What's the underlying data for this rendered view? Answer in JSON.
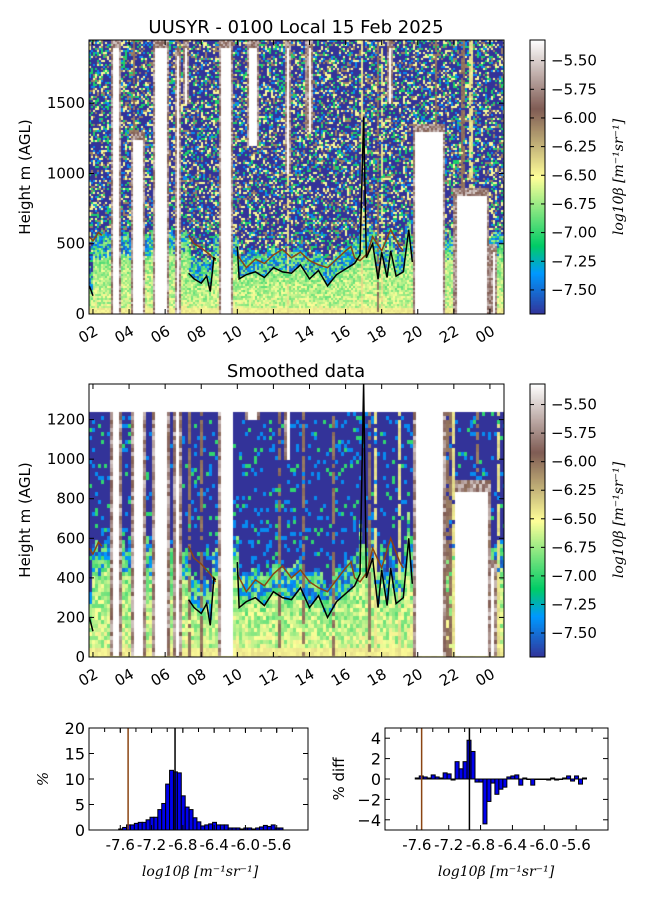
{
  "chart_data": [
    {
      "type": "heatmap",
      "title": "UUSYR - 0100 Local 15 Feb 2025",
      "ylabel": "Height m (AGL)",
      "xticklabels": [
        "02",
        "04",
        "06",
        "08",
        "10",
        "12",
        "14",
        "16",
        "18",
        "20",
        "22",
        "00"
      ],
      "xtick_hours": [
        2,
        4,
        6,
        8,
        10,
        12,
        14,
        16,
        18,
        20,
        22,
        24
      ],
      "xlim_hours": [
        1.78,
        24.78
      ],
      "yticks": [
        0,
        500,
        1000,
        1500
      ],
      "ylim": [
        0,
        1950
      ],
      "colorbar": {
        "label": "log10β [m⁻¹sr⁻¹]",
        "ticks": [
          "-5.50",
          "-5.75",
          "-6.00",
          "-6.25",
          "-6.50",
          "-6.75",
          "-7.00",
          "-7.25",
          "-7.50"
        ],
        "range": [
          -7.71,
          -5.32
        ],
        "colormap": "terrain"
      },
      "max_height_m": 1950
    },
    {
      "type": "heatmap",
      "title": "Smoothed data",
      "ylabel": "Height m (AGL)",
      "xticklabels": [
        "02",
        "04",
        "06",
        "08",
        "10",
        "12",
        "14",
        "16",
        "18",
        "20",
        "22",
        "00"
      ],
      "xtick_hours": [
        2,
        4,
        6,
        8,
        10,
        12,
        14,
        16,
        18,
        20,
        22,
        24
      ],
      "xlim_hours": [
        1.78,
        24.78
      ],
      "yticks": [
        0,
        200,
        400,
        600,
        800,
        1000,
        1200
      ],
      "ylim": [
        0,
        1380
      ],
      "colorbar": {
        "label": "log10β [m⁻¹sr⁻¹]",
        "ticks": [
          "-5.50",
          "-5.75",
          "-6.00",
          "-6.25",
          "-6.50",
          "-6.75",
          "-7.00",
          "-7.25",
          "-7.50"
        ],
        "range": [
          -7.71,
          -5.32
        ],
        "colormap": "terrain"
      },
      "max_height_m": 1240
    },
    {
      "type": "bar",
      "ylabel": "%",
      "xlabel": "log10β [m⁻¹sr⁻¹]",
      "xticks": [
        "-7.6",
        "-7.2",
        "-6.8",
        "-6.4",
        "-6.0",
        "-5.6"
      ],
      "xlim": [
        -8.0,
        -5.2
      ],
      "ylim": [
        0,
        20
      ],
      "yticks": [
        "0",
        "5",
        "10",
        "15",
        "20"
      ],
      "bin_start": -7.62,
      "bin_width": 0.05,
      "values": [
        0.2,
        0.5,
        1.0,
        1.0,
        1.3,
        1.5,
        1.5,
        2.0,
        2.5,
        2.5,
        4.0,
        5.2,
        9.0,
        11.7,
        11.4,
        11.2,
        6.7,
        4.5,
        4.0,
        2.4,
        1.6,
        0.8,
        1.0,
        1.2,
        1.5,
        1.0,
        1.0,
        1.0,
        0.4,
        0.4,
        0.4,
        0.2,
        0.4,
        0.4,
        0.2,
        0.4,
        0.6,
        0.9,
        0.7,
        1.0,
        0.4,
        0.4
      ],
      "vlines": [
        {
          "x": -7.5,
          "color": "#8b4513"
        },
        {
          "x": -6.9,
          "color": "#000000"
        }
      ]
    },
    {
      "type": "bar",
      "ylabel": "% diff",
      "xlabel": "log10β [m⁻¹sr⁻¹]",
      "xticks": [
        "-7.6",
        "-7.2",
        "-6.8",
        "-6.4",
        "-6.0",
        "-5.6"
      ],
      "xlim": [
        -8.0,
        -5.2
      ],
      "ylim": [
        -5,
        5
      ],
      "yticks": [
        "4",
        "2",
        "0",
        "-2",
        "-4"
      ],
      "bin_start": -7.62,
      "bin_width": 0.05,
      "values": [
        0.1,
        0.3,
        0.2,
        0.1,
        0.4,
        0.2,
        0.1,
        0.6,
        0.5,
        -0.1,
        1.7,
        1.0,
        1.7,
        3.8,
        2.7,
        -0.3,
        -0.3,
        -4.4,
        -2.2,
        -0.4,
        -1.5,
        -1.0,
        -0.8,
        0.2,
        0.3,
        0.4,
        -0.6,
        0.1,
        0.0,
        -0.6,
        0.0,
        0.0,
        0.0,
        -0.1,
        0.1,
        -0.1,
        0.0,
        0.1,
        0.3,
        -0.2,
        0.3,
        -0.5,
        0.1
      ],
      "vlines": [
        {
          "x": -7.54,
          "color": "#8b4513"
        },
        {
          "x": -6.94,
          "color": "#000000"
        }
      ]
    }
  ],
  "boundary_layer": {
    "black_line": [
      [
        [
          1.8,
          200
        ],
        [
          2.0,
          130
        ]
      ],
      [
        [
          7.3,
          290
        ],
        [
          7.6,
          250
        ],
        [
          8.0,
          220
        ],
        [
          8.3,
          270
        ],
        [
          8.5,
          160
        ],
        [
          8.7,
          400
        ],
        [
          8.8,
          390
        ]
      ],
      [
        [
          10.0,
          480
        ],
        [
          10.1,
          250
        ],
        [
          10.5,
          280
        ],
        [
          11.0,
          300
        ],
        [
          11.5,
          260
        ],
        [
          12.0,
          330
        ],
        [
          12.5,
          300
        ],
        [
          13.0,
          290
        ],
        [
          13.5,
          350
        ],
        [
          14.0,
          250
        ],
        [
          14.5,
          310
        ],
        [
          15.0,
          200
        ],
        [
          15.5,
          280
        ],
        [
          16.0,
          320
        ],
        [
          16.5,
          360
        ],
        [
          16.8,
          420
        ],
        [
          17.0,
          1400
        ],
        [
          17.15,
          400
        ],
        [
          17.5,
          500
        ],
        [
          17.8,
          250
        ],
        [
          18.0,
          440
        ],
        [
          18.3,
          260
        ],
        [
          18.5,
          450
        ],
        [
          18.8,
          270
        ],
        [
          19.2,
          300
        ],
        [
          19.5,
          600
        ],
        [
          19.7,
          370
        ]
      ]
    ],
    "brown_line": [
      [
        [
          1.8,
          550
        ],
        [
          2.0,
          520
        ],
        [
          2.3,
          580
        ],
        [
          2.5,
          560
        ]
      ],
      [
        [
          7.3,
          560
        ],
        [
          7.6,
          500
        ],
        [
          8.0,
          470
        ],
        [
          8.5,
          420
        ],
        [
          8.8,
          380
        ]
      ],
      [
        [
          10.0,
          420
        ],
        [
          10.5,
          330
        ],
        [
          11.0,
          390
        ],
        [
          11.5,
          360
        ],
        [
          12.0,
          420
        ],
        [
          12.5,
          460
        ],
        [
          13.0,
          400
        ],
        [
          13.5,
          440
        ],
        [
          14.0,
          380
        ],
        [
          14.5,
          350
        ],
        [
          15.0,
          330
        ],
        [
          15.5,
          390
        ],
        [
          16.0,
          450
        ],
        [
          16.3,
          480
        ],
        [
          16.5,
          400
        ],
        [
          16.8,
          380
        ],
        [
          17.2,
          430
        ],
        [
          17.5,
          550
        ],
        [
          18.0,
          450
        ],
        [
          18.5,
          600
        ],
        [
          19.0,
          480
        ],
        [
          19.2,
          450
        ]
      ]
    ],
    "black_color": "#000000",
    "brown_color": "#8b4513"
  },
  "clear_gaps_hours_m": [
    [
      2.95,
      3.6,
      0,
      1950
    ],
    [
      4.1,
      4.9,
      0,
      1300
    ],
    [
      5.3,
      6.2,
      0,
      1950
    ],
    [
      6.5,
      6.9,
      0,
      1900
    ],
    [
      7.0,
      7.3,
      1500,
      1950
    ],
    [
      9.0,
      9.8,
      0,
      1950
    ],
    [
      10.5,
      11.2,
      1200,
      1950
    ],
    [
      12.6,
      13.0,
      1000,
      1950
    ],
    [
      13.8,
      14.2,
      1300,
      1950
    ],
    [
      18.3,
      18.6,
      1500,
      1950
    ],
    [
      19.7,
      21.5,
      0,
      1350
    ],
    [
      22.0,
      24.0,
      0,
      900
    ],
    [
      24.0,
      24.4,
      0,
      500
    ]
  ]
}
